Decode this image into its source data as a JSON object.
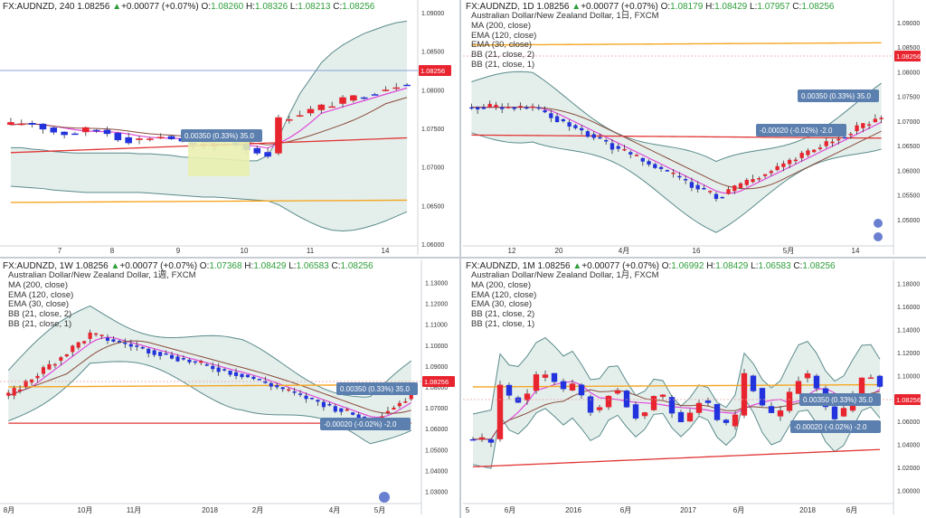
{
  "colors": {
    "up": "#e8242f",
    "down": "#2233dd",
    "bb_fill": "#e4efec",
    "bb_line": "#5a8a8a",
    "ma200": "#f5a623",
    "ema120": "#e23434",
    "ema30": "#8a4b3a",
    "bb_mid": "#e048d8",
    "price_tag": "#e8242f",
    "ruler_box": "#5b7fae",
    "ruler_fill": "#e9f0b0"
  },
  "panels": [
    {
      "id": "p4h",
      "header": {
        "symbol": "FX:AUDNZD, 240",
        "last": "1.08256",
        "arrow": "▲",
        "change": "+0.00077 (+0.07%)",
        "O": "1.08260",
        "H": "1.08326",
        "L": "1.08213",
        "C": "1.08256"
      },
      "legend": [],
      "price_tag": "1.08256",
      "ruler": {
        "up": "0.00350 (0.33%) 35.0",
        "down": ""
      },
      "chart_data": {
        "type": "candlestick",
        "ylim": [
          1.06,
          1.09
        ],
        "y_ticks": [
          "1.09000",
          "1.08500",
          "1.08000",
          "1.07500",
          "1.07000",
          "1.06500",
          "1.06000"
        ],
        "x_ticks": [
          "7",
          "8",
          "9",
          "10",
          "11",
          "14"
        ],
        "series": [
          {
            "name": "BB upper",
            "values": [
              1.0725,
              1.0725,
              1.0723,
              1.0722,
              1.072,
              1.0719,
              1.0718,
              1.0718,
              1.0718,
              1.0718,
              1.0718,
              1.0718,
              1.0717,
              1.0717,
              1.0716,
              1.0715,
              1.0713,
              1.0712,
              1.0711,
              1.071,
              1.0709,
              1.0708,
              1.0708,
              1.0715,
              1.0738,
              1.0768,
              1.0795,
              1.0815,
              1.0835,
              1.0848,
              1.0858,
              1.0866,
              1.0873,
              1.0878,
              1.0883,
              1.0887,
              1.0889
            ]
          },
          {
            "name": "BB lower",
            "values": [
              1.0675,
              1.0674,
              1.0673,
              1.0672,
              1.067,
              1.0669,
              1.0668,
              1.0667,
              1.0667,
              1.0667,
              1.0667,
              1.0667,
              1.0667,
              1.0666,
              1.0665,
              1.0664,
              1.0663,
              1.0662,
              1.0661,
              1.066,
              1.0659,
              1.0658,
              1.0657,
              1.0656,
              1.0651,
              1.0643,
              1.0635,
              1.0628,
              1.0622,
              1.0618,
              1.0617,
              1.0618,
              1.0621,
              1.0625,
              1.063,
              1.0636,
              1.0642
            ]
          }
        ]
      }
    },
    {
      "id": "p1d",
      "header": {
        "symbol": "FX:AUDNZD, 1D",
        "last": "1.08256",
        "arrow": "▲",
        "change": "+0.00077 (+0.07%)",
        "O": "1.08179",
        "H": "1.08429",
        "L": "1.07957",
        "C": "1.08256"
      },
      "legend": [
        "Australian Dollar/New Zealand Dollar, 1日, FXCM",
        "MA (200, close)",
        "EMA (120, close)",
        "EMA (30, close)",
        "BB (21, close, 2)",
        "BB (21, close, 1)"
      ],
      "price_tag": "1.08256",
      "ruler": {
        "up": "0.00350 (0.33%) 35.0",
        "down": "-0.00020 (-0.02%) -2.0"
      },
      "chart_data": {
        "type": "candlestick",
        "ylim": [
          1.045,
          1.092
        ],
        "y_ticks": [
          "1.09000",
          "1.08500",
          "1.08000",
          "1.07500",
          "1.07000",
          "1.06500",
          "1.06000",
          "1.05500",
          "1.05000"
        ],
        "x_ticks": [
          "12",
          "20",
          "4月",
          "16",
          "5月",
          "14"
        ]
      }
    },
    {
      "id": "p1w",
      "header": {
        "symbol": "FX:AUDNZD, 1W",
        "last": "1.08256",
        "arrow": "▲",
        "change": "+0.00077 (+0.07%)",
        "O": "1.07368",
        "H": "1.08429",
        "L": "1.06583",
        "C": "1.08256"
      },
      "legend": [
        "Australian Dollar/New Zealand Dollar, 1週, FXCM",
        "MA (200, close)",
        "EMA (120, close)",
        "EMA (30, close)",
        "BB (21, close, 2)",
        "BB (21, close, 1)"
      ],
      "price_tag": "1.08256",
      "ruler": {
        "up": "0.00350 (0.33%) 35.0",
        "down": "-0.00020 (-0.02%) -2.0"
      },
      "chart_data": {
        "type": "candlestick",
        "ylim": [
          1.025,
          1.135
        ],
        "y_ticks": [
          "1.13000",
          "1.12000",
          "1.11000",
          "1.10000",
          "1.09000",
          "1.08000",
          "1.07000",
          "1.06000",
          "1.05000",
          "1.04000",
          "1.03000"
        ],
        "x_ticks": [
          "8月",
          "10月",
          "11月",
          "2018",
          "2月",
          "4月",
          "5月"
        ]
      }
    },
    {
      "id": "p1m",
      "header": {
        "symbol": "FX:AUDNZD, 1M",
        "last": "1.08256",
        "arrow": "▲",
        "change": "+0.00077 (+0.07%)",
        "O": "1.06992",
        "H": "1.08429",
        "L": "1.06583",
        "C": "1.08256"
      },
      "legend": [
        "Australian Dollar/New Zealand Dollar, 1月, FXCM",
        "MA (200, close)",
        "EMA (120, close)",
        "EMA (30, close)",
        "BB (21, close, 2)",
        "BB (21, close, 1)"
      ],
      "price_tag": "1.08256",
      "ruler": {
        "up": "0.00350 (0.33%) 35.0",
        "down": "-0.00020 (-0.02%) -2.0"
      },
      "chart_data": {
        "type": "candlestick",
        "ylim": [
          0.99,
          1.19
        ],
        "y_ticks": [
          "1.18000",
          "1.16000",
          "1.14000",
          "1.12000",
          "1.10000",
          "1.08000",
          "1.06000",
          "1.04000",
          "1.02000",
          "1.00000"
        ],
        "x_ticks": [
          "5",
          "6月",
          "2016",
          "6月",
          "2017",
          "6月",
          "2018",
          "6月"
        ]
      }
    }
  ]
}
